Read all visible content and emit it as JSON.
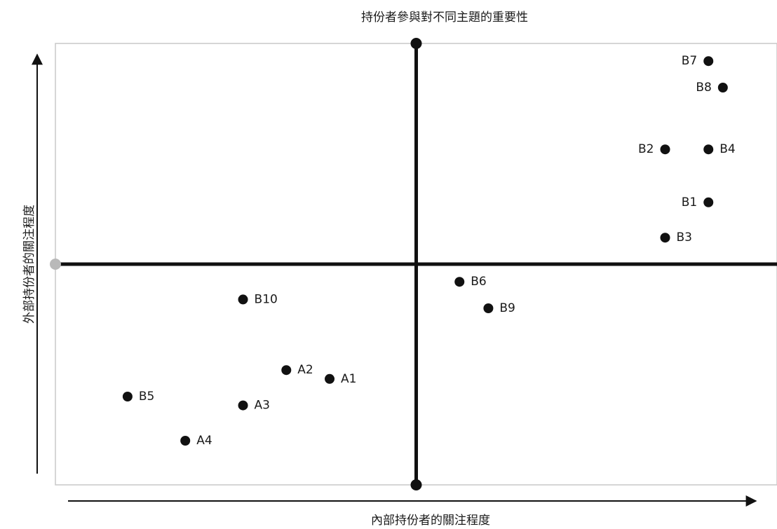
{
  "chart_data": {
    "type": "scatter",
    "title": "持份者參與對不同主題的重要性",
    "xlabel": "內部持份者的關注程度",
    "ylabel": "外部持份者的關注程度",
    "xlim": [
      0,
      10
    ],
    "ylim": [
      0,
      10
    ],
    "quadrant_lines": {
      "x": 5,
      "y": 5
    },
    "grid": false,
    "legend": "none",
    "point_color": "#111111",
    "points": [
      {
        "label": "B7",
        "x": 9.05,
        "y": 9.6
      },
      {
        "label": "B8",
        "x": 9.25,
        "y": 9.0
      },
      {
        "label": "B2",
        "x": 8.45,
        "y": 7.6
      },
      {
        "label": "B4",
        "x": 9.05,
        "y": 7.6
      },
      {
        "label": "B1",
        "x": 9.05,
        "y": 6.4
      },
      {
        "label": "B3",
        "x": 8.45,
        "y": 5.6
      },
      {
        "label": "B6",
        "x": 5.6,
        "y": 4.6
      },
      {
        "label": "B9",
        "x": 6.0,
        "y": 4.0
      },
      {
        "label": "B10",
        "x": 2.6,
        "y": 4.2
      },
      {
        "label": "A2",
        "x": 3.2,
        "y": 2.6
      },
      {
        "label": "A1",
        "x": 3.8,
        "y": 2.4
      },
      {
        "label": "B5",
        "x": 1.0,
        "y": 2.0
      },
      {
        "label": "A3",
        "x": 2.6,
        "y": 1.8
      },
      {
        "label": "A4",
        "x": 1.8,
        "y": 1.0
      }
    ]
  }
}
